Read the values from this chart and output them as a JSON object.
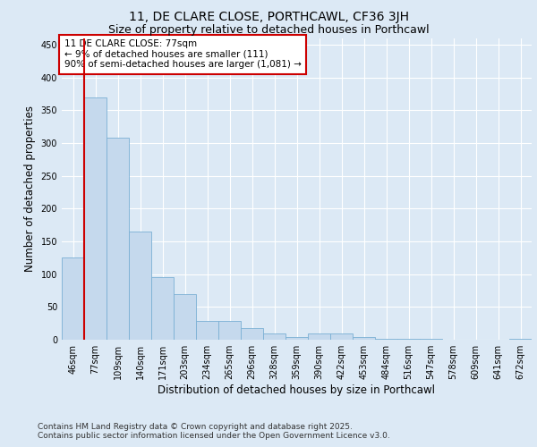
{
  "title_line1": "11, DE CLARE CLOSE, PORTHCAWL, CF36 3JH",
  "title_line2": "Size of property relative to detached houses in Porthcawl",
  "xlabel": "Distribution of detached houses by size in Porthcawl",
  "ylabel": "Number of detached properties",
  "categories": [
    "46sqm",
    "77sqm",
    "109sqm",
    "140sqm",
    "171sqm",
    "203sqm",
    "234sqm",
    "265sqm",
    "296sqm",
    "328sqm",
    "359sqm",
    "390sqm",
    "422sqm",
    "453sqm",
    "484sqm",
    "516sqm",
    "547sqm",
    "578sqm",
    "609sqm",
    "641sqm",
    "672sqm"
  ],
  "values": [
    125,
    370,
    308,
    165,
    95,
    70,
    28,
    28,
    18,
    9,
    4,
    9,
    9,
    4,
    1,
    1,
    1,
    0,
    0,
    0,
    2
  ],
  "bar_color": "#c5d9ed",
  "bar_edge_color": "#7aafd4",
  "vline_index": 1,
  "vline_color": "#cc0000",
  "annotation_text": "11 DE CLARE CLOSE: 77sqm\n← 9% of detached houses are smaller (111)\n90% of semi-detached houses are larger (1,081) →",
  "annotation_box_color": "#ffffff",
  "annotation_box_edge_color": "#cc0000",
  "ylim": [
    0,
    460
  ],
  "yticks": [
    0,
    50,
    100,
    150,
    200,
    250,
    300,
    350,
    400,
    450
  ],
  "background_color": "#dce9f5",
  "grid_color": "#ffffff",
  "footer_line1": "Contains HM Land Registry data © Crown copyright and database right 2025.",
  "footer_line2": "Contains public sector information licensed under the Open Government Licence v3.0.",
  "title_fontsize": 10,
  "subtitle_fontsize": 9,
  "tick_fontsize": 7,
  "label_fontsize": 8.5,
  "annotation_fontsize": 7.5,
  "footer_fontsize": 6.5
}
